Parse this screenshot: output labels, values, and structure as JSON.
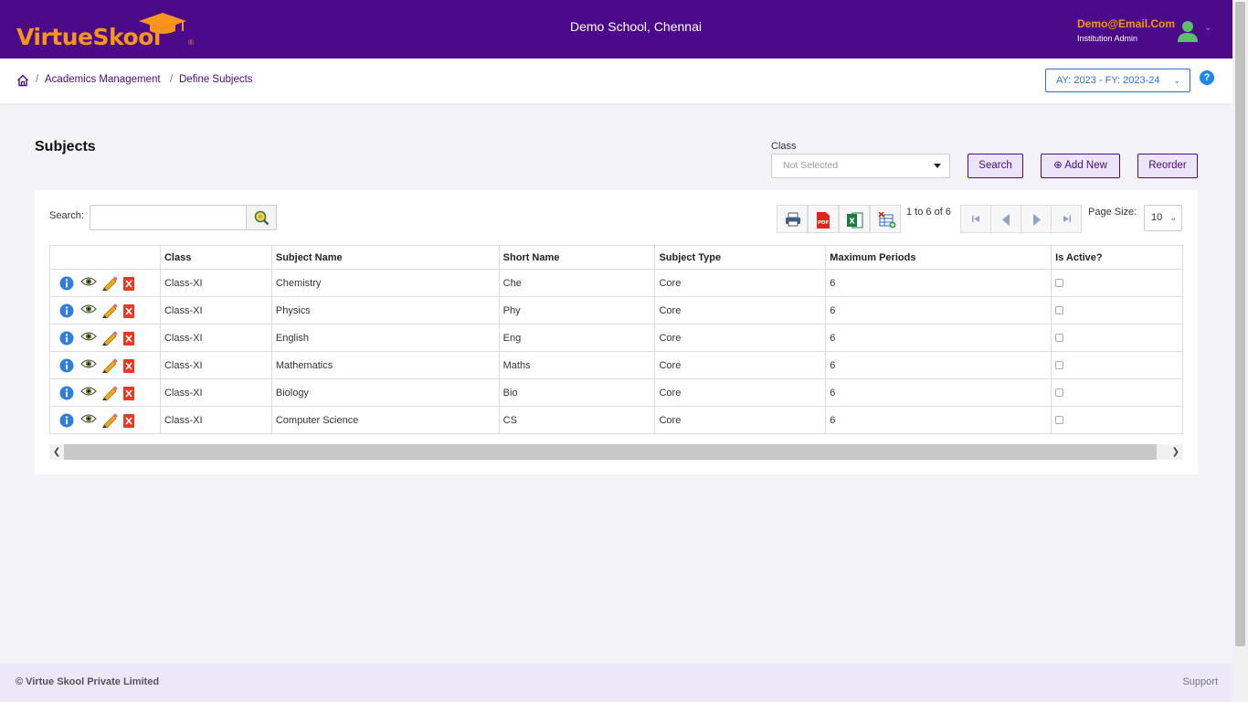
{
  "header": {
    "logo_text_1": "Virtue",
    "logo_text_2": "Sk",
    "logo_text_3": "ol",
    "school_name": "Demo School, Chennai",
    "user_email": "Demo@Email.Com",
    "user_role": "Institution Admin",
    "brand_color": "#4b0a8a",
    "accent_color": "#f7941d"
  },
  "breadcrumb": {
    "items": [
      "Academics Management",
      "Define Subjects"
    ],
    "academic_year": "AY: 2023 - FY: 2023-24"
  },
  "page": {
    "title": "Subjects",
    "class_label": "Class",
    "class_value": "Not Selected",
    "search_button": "Search",
    "add_button": "Add New",
    "reorder_button": "Reorder"
  },
  "grid": {
    "search_label": "Search:",
    "search_value": "",
    "pager_text": "1 to 6 of 6",
    "page_size_label": "Page Size:",
    "page_size": "10",
    "columns": [
      "",
      "Class",
      "Subject Name",
      "Short Name",
      "Subject Type",
      "Maximum Periods",
      "Is Active?"
    ],
    "rows": [
      {
        "class": "Class-XI",
        "subject": "Chemistry",
        "short": "Che",
        "type": "Core",
        "periods": "6"
      },
      {
        "class": "Class-XI",
        "subject": "Physics",
        "short": "Phy",
        "type": "Core",
        "periods": "6"
      },
      {
        "class": "Class-XI",
        "subject": "English",
        "short": "Eng",
        "type": "Core",
        "periods": "6"
      },
      {
        "class": "Class-XI",
        "subject": "Mathematics",
        "short": "Maths",
        "type": "Core",
        "periods": "6"
      },
      {
        "class": "Class-XI",
        "subject": "Biology",
        "short": "Bio",
        "type": "Core",
        "periods": "6"
      },
      {
        "class": "Class-XI",
        "subject": "Computer Science",
        "short": "CS",
        "type": "Core",
        "periods": "6"
      }
    ]
  },
  "footer": {
    "copyright": "© Virtue Skool Private Limited",
    "support": "Support"
  }
}
